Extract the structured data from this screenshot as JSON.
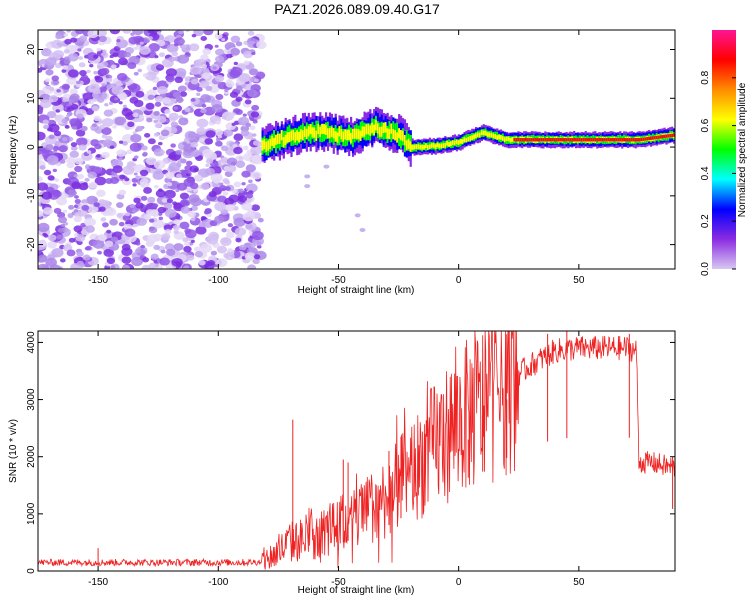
{
  "figure_title": "PAZ1.2026.089.09.40.G17",
  "chart_data": [
    {
      "type": "heatmap",
      "title": "PAZ1.2026.089.09.40.G17",
      "xlabel": "Height of straight line (km)",
      "ylabel": "Frequency (Hz)",
      "xlim": [
        -175,
        90
      ],
      "ylim": [
        -25,
        24
      ],
      "xticks": [
        -150,
        -100,
        -50,
        0,
        50
      ],
      "yticks": [
        -20,
        -10,
        0,
        10,
        20
      ],
      "colorbar": {
        "label": "Normalized spectral amplitude",
        "range": [
          0.0,
          1.0
        ],
        "ticks": [
          0.0,
          0.2,
          0.4,
          0.6,
          0.8
        ],
        "colormap": [
          "#d8c8f0",
          "#8a2be2",
          "#0000ff",
          "#00ffff",
          "#00ff00",
          "#ffff00",
          "#ff8c00",
          "#ff0000",
          "#ff1493"
        ]
      },
      "regions": [
        {
          "name": "noise",
          "x": [
            -175,
            -82
          ],
          "freq": [
            -25,
            24
          ],
          "amplitude": [
            0.0,
            0.15
          ]
        },
        {
          "name": "signal-band",
          "x": [
            -82,
            90
          ],
          "amplitude": [
            0.2,
            1.0
          ],
          "center_freq_points": [
            [
              -82,
              0
            ],
            [
              -75,
              1.5
            ],
            [
              -65,
              3
            ],
            [
              -55,
              3
            ],
            [
              -45,
              2
            ],
            [
              -35,
              4
            ],
            [
              -25,
              2.5
            ],
            [
              -20,
              0
            ],
            [
              -10,
              0.2
            ],
            [
              0,
              1
            ],
            [
              10,
              3
            ],
            [
              20,
              1.5
            ],
            [
              25,
              1.5
            ],
            [
              50,
              1.5
            ],
            [
              75,
              1.5
            ],
            [
              90,
              2.5
            ]
          ]
        }
      ]
    },
    {
      "type": "line",
      "title": "",
      "xlabel": "Height of straight line (km)",
      "ylabel": "SNR (10 * v/v)",
      "xlim": [
        -175,
        90
      ],
      "ylim": [
        0,
        4200
      ],
      "xticks": [
        -150,
        -100,
        -50,
        0,
        50
      ],
      "yticks": [
        0,
        1000,
        2000,
        3000,
        4000
      ],
      "series": [
        {
          "name": "SNR",
          "color": "#ee2222",
          "envelope_points": [
            [
              -175,
              150
            ],
            [
              -150,
              150
            ],
            [
              -100,
              150
            ],
            [
              -90,
              150
            ],
            [
              -82,
              160
            ],
            [
              -76,
              300
            ],
            [
              -70,
              500
            ],
            [
              -60,
              600
            ],
            [
              -50,
              800
            ],
            [
              -40,
              1000
            ],
            [
              -30,
              1300
            ],
            [
              -20,
              1700
            ],
            [
              -10,
              2200
            ],
            [
              0,
              2600
            ],
            [
              10,
              2900
            ],
            [
              20,
              3300
            ],
            [
              30,
              3600
            ],
            [
              40,
              3850
            ],
            [
              50,
              3900
            ],
            [
              60,
              3900
            ],
            [
              70,
              3900
            ],
            [
              74,
              3850
            ],
            [
              75,
              1900
            ],
            [
              80,
              1900
            ],
            [
              85,
              1850
            ],
            [
              90,
              1800
            ]
          ],
          "spikes": [
            [
              -110,
              200
            ],
            [
              -150,
              400
            ],
            [
              -69,
              2650
            ],
            [
              -48,
              1950
            ],
            [
              -46,
              1900
            ],
            [
              -29,
              2100
            ],
            [
              -24,
              2350
            ],
            [
              -14,
              2400
            ],
            [
              4,
              2300
            ],
            [
              10,
              2750
            ],
            [
              20,
              3000
            ],
            [
              37,
              4150
            ],
            [
              45,
              4200
            ],
            [
              71,
              4150
            ],
            [
              89,
              2000
            ]
          ]
        }
      ]
    }
  ]
}
